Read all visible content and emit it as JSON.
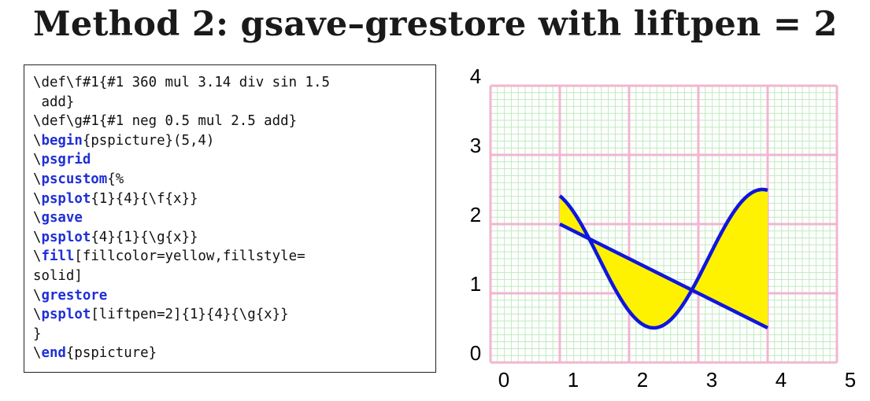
{
  "title": "Method 2: gsave–grestore with liftpen = 2",
  "code_lines": [
    [
      {
        "t": "\\def\\f#1{#1 360 mul 3.14 div sin 1.5",
        "kw": false
      }
    ],
    [
      {
        "t": " add}",
        "kw": false
      }
    ],
    [
      {
        "t": "\\def\\g#1{#1 neg 0.5 mul 2.5 add}",
        "kw": false
      }
    ],
    [
      {
        "t": "\\",
        "kw": false
      },
      {
        "t": "begin",
        "kw": true
      },
      {
        "t": "{pspicture}(5,4)",
        "kw": false
      }
    ],
    [
      {
        "t": "\\",
        "kw": false
      },
      {
        "t": "psgrid",
        "kw": true
      }
    ],
    [
      {
        "t": "\\",
        "kw": false
      },
      {
        "t": "pscustom",
        "kw": true
      },
      {
        "t": "{%",
        "kw": false
      }
    ],
    [
      {
        "t": "\\",
        "kw": false
      },
      {
        "t": "psplot",
        "kw": true
      },
      {
        "t": "{1}{4}{\\f{x}}",
        "kw": false
      }
    ],
    [
      {
        "t": "\\",
        "kw": false
      },
      {
        "t": "gsave",
        "kw": true
      }
    ],
    [
      {
        "t": "\\",
        "kw": false
      },
      {
        "t": "psplot",
        "kw": true
      },
      {
        "t": "{4}{1}{\\g{x}}",
        "kw": false
      }
    ],
    [
      {
        "t": "\\",
        "kw": false
      },
      {
        "t": "fill",
        "kw": true
      },
      {
        "t": "[fillcolor=yellow,fillstyle=",
        "kw": false
      }
    ],
    [
      {
        "t": "solid]",
        "kw": false
      }
    ],
    [
      {
        "t": "\\",
        "kw": false
      },
      {
        "t": "grestore",
        "kw": true
      }
    ],
    [
      {
        "t": "\\",
        "kw": false
      },
      {
        "t": "psplot",
        "kw": true
      },
      {
        "t": "[liftpen=2]{1}{4}{\\g{x}}",
        "kw": false
      }
    ],
    [
      {
        "t": "}",
        "kw": false
      }
    ],
    [
      {
        "t": "\\",
        "kw": false
      },
      {
        "t": "end",
        "kw": true
      },
      {
        "t": "{pspicture}",
        "kw": false
      }
    ]
  ],
  "plot": {
    "x_ticks": [
      "0",
      "1",
      "2",
      "3",
      "4",
      "5"
    ],
    "y_ticks": [
      "0",
      "1",
      "2",
      "3",
      "4"
    ],
    "x_range": [
      0,
      5
    ],
    "y_range": [
      0,
      4
    ],
    "grid": true,
    "f_domain": [
      1,
      4
    ],
    "g_domain": [
      1,
      4
    ],
    "colors": {
      "main_grid": "#f0b6cf",
      "sub_grid": "#bfeabf",
      "curve": "#0f16dc",
      "fill": "#fff200",
      "tick_label": "#000000",
      "keyword": "#1f2fd6"
    }
  }
}
